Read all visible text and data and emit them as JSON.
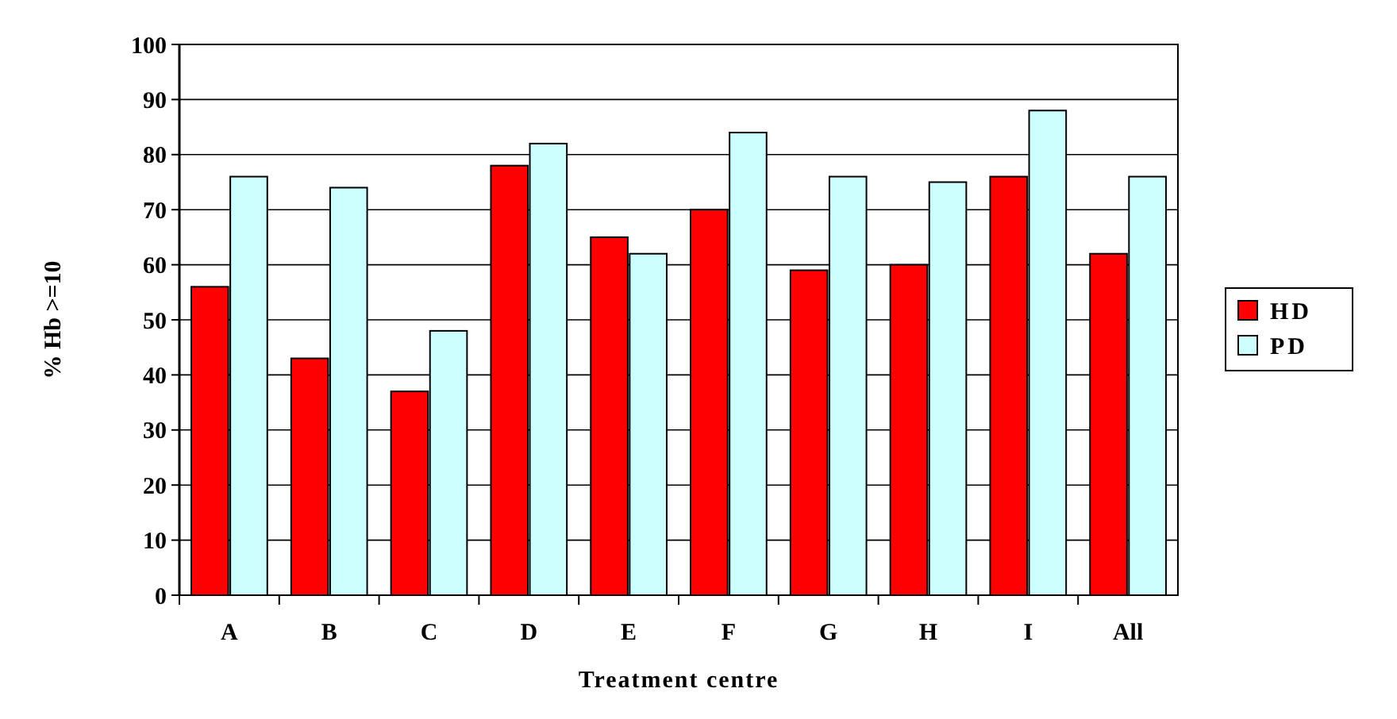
{
  "chart_data": {
    "type": "bar",
    "xlabel": "Treatment centre",
    "ylabel": "% Hb >=10",
    "categories": [
      "A",
      "B",
      "C",
      "D",
      "E",
      "F",
      "G",
      "H",
      "I",
      "All"
    ],
    "series": [
      {
        "name": "HD",
        "color": "#ff0000",
        "values": [
          56,
          43,
          37,
          78,
          65,
          70,
          59,
          60,
          76,
          62
        ]
      },
      {
        "name": "PD",
        "color": "#ccffff",
        "values": [
          76,
          74,
          48,
          82,
          62,
          84,
          76,
          75,
          88,
          76
        ]
      }
    ],
    "ylim": [
      0,
      100
    ],
    "yticks": [
      0,
      10,
      20,
      30,
      40,
      50,
      60,
      70,
      80,
      90,
      100
    ],
    "grid": "y",
    "legend": "right"
  }
}
